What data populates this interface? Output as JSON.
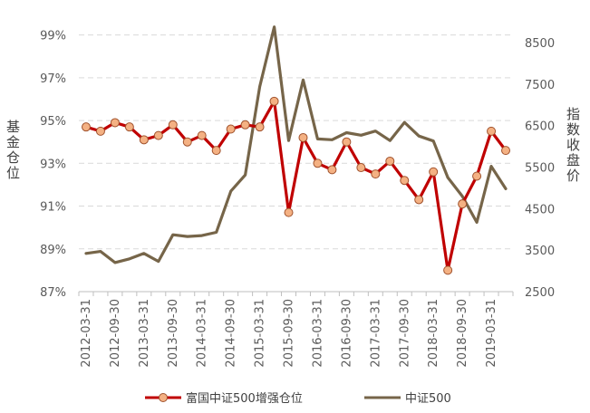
{
  "chart_data": {
    "type": "line",
    "y_left_label": "基金仓位",
    "y_right_label": "指数收盘价",
    "y_left_ticks": [
      "87%",
      "89%",
      "91%",
      "93%",
      "95%",
      "97%",
      "99%"
    ],
    "y_left_range": [
      87,
      100
    ],
    "y_right_ticks": [
      "2500",
      "3500",
      "4500",
      "5500",
      "6500",
      "7500",
      "8500"
    ],
    "y_right_range": [
      2500,
      9200
    ],
    "x_tick_labels": [
      "2012-03-31",
      "2012-09-30",
      "2013-03-31",
      "2013-09-30",
      "2014-03-31",
      "2014-09-30",
      "2015-03-31",
      "2015-09-30",
      "2016-03-31",
      "2016-09-30",
      "2017-03-31",
      "2017-09-30",
      "2018-03-31",
      "2018-09-30",
      "2019-03-31"
    ],
    "categories": [
      "2012-03-31",
      "2012-06-30",
      "2012-09-30",
      "2012-12-31",
      "2013-03-31",
      "2013-06-30",
      "2013-09-30",
      "2013-12-31",
      "2014-03-31",
      "2014-06-30",
      "2014-09-30",
      "2014-12-31",
      "2015-03-31",
      "2015-06-30",
      "2015-09-30",
      "2015-12-31",
      "2016-03-31",
      "2016-06-30",
      "2016-09-30",
      "2016-12-31",
      "2017-03-31",
      "2017-06-30",
      "2017-09-30",
      "2017-12-31",
      "2018-03-31",
      "2018-06-30",
      "2018-09-30",
      "2018-12-31",
      "2019-03-31",
      "2019-06-30"
    ],
    "grid": true,
    "legend_position": "bottom",
    "series": [
      {
        "name": "富国中证500增强仓位",
        "axis": "left",
        "color": "#c00000",
        "marker_color": "#f4b183",
        "values": [
          94.7,
          94.5,
          94.9,
          94.7,
          94.1,
          94.3,
          94.8,
          94.0,
          94.3,
          93.6,
          94.6,
          94.8,
          94.7,
          95.9,
          90.7,
          94.2,
          93.0,
          92.7,
          94.0,
          92.8,
          92.5,
          93.1,
          92.2,
          91.3,
          92.6,
          88.0,
          91.1,
          92.4,
          94.5,
          93.6
        ]
      },
      {
        "name": "中证500",
        "axis": "right",
        "color": "#766549",
        "values": [
          3420,
          3470,
          3200,
          3290,
          3420,
          3230,
          3870,
          3830,
          3850,
          3930,
          4920,
          5310,
          7440,
          8880,
          6140,
          7600,
          6180,
          6160,
          6330,
          6270,
          6370,
          6140,
          6580,
          6250,
          6130,
          5250,
          4800,
          4170,
          5520,
          4980
        ]
      }
    ]
  }
}
